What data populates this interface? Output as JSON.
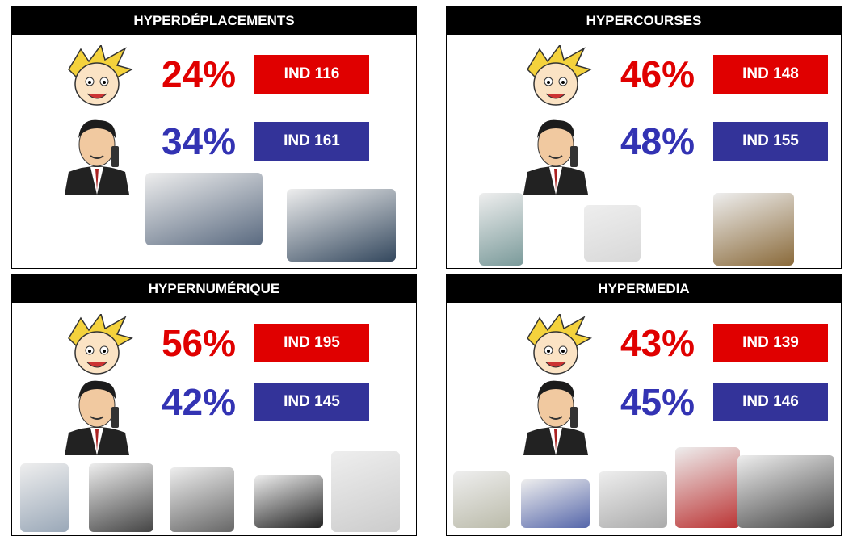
{
  "panels": [
    {
      "title": "HYPERDÉPLACEMENTS",
      "rows": [
        {
          "percent": "24%",
          "index": "IND 116"
        },
        {
          "percent": "34%",
          "index": "IND 161"
        }
      ]
    },
    {
      "title": "HYPERCOURSES",
      "rows": [
        {
          "percent": "46%",
          "index": "IND 148"
        },
        {
          "percent": "48%",
          "index": "IND 155"
        }
      ]
    },
    {
      "title": "HYPERNUMÉRIQUE",
      "rows": [
        {
          "percent": "56%",
          "index": "IND 195"
        },
        {
          "percent": "42%",
          "index": "IND 145"
        }
      ]
    },
    {
      "title": "HYPERMEDIA",
      "rows": [
        {
          "percent": "43%",
          "index": "IND 139"
        },
        {
          "percent": "45%",
          "index": "IND 146"
        }
      ]
    }
  ]
}
